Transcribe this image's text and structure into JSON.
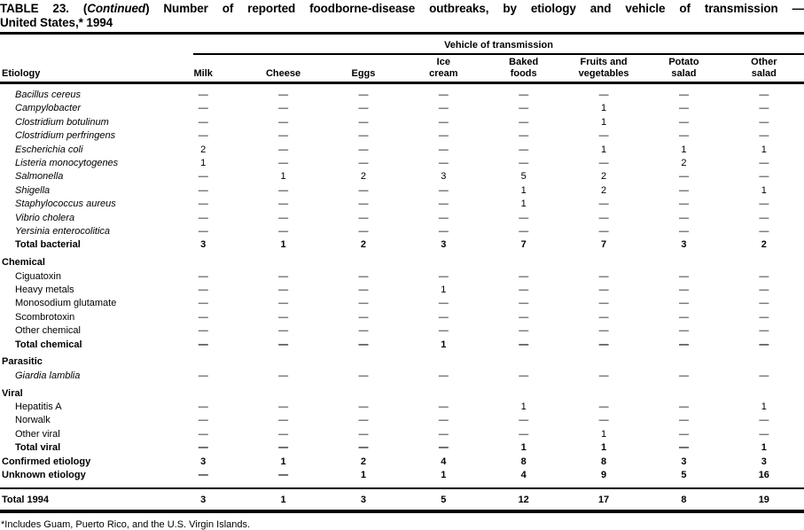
{
  "title": {
    "prefix": "TABLE 23. (",
    "continued": "Continued",
    "suffix": ") Number of reported foodborne-disease outbreaks, by etiology and vehicle of transmission —",
    "line2": "United States,* 1994"
  },
  "table": {
    "spanner_label": "Vehicle of transmission",
    "etiology_header": "Etiology",
    "columns": [
      {
        "lines": [
          "Milk"
        ]
      },
      {
        "lines": [
          "Cheese"
        ]
      },
      {
        "lines": [
          "Eggs"
        ]
      },
      {
        "lines": [
          "Ice",
          "cream"
        ]
      },
      {
        "lines": [
          "Baked",
          "foods"
        ]
      },
      {
        "lines": [
          "Fruits and",
          "vegetables"
        ]
      },
      {
        "lines": [
          "Potato",
          "salad"
        ]
      },
      {
        "lines": [
          "Other",
          "salad"
        ]
      }
    ],
    "rows": [
      {
        "label": "Bacillus cereus",
        "style": "species",
        "values": [
          "—",
          "—",
          "—",
          "—",
          "—",
          "—",
          "—",
          "—"
        ]
      },
      {
        "label": "Campylobacter",
        "style": "species",
        "values": [
          "—",
          "—",
          "—",
          "—",
          "—",
          "1",
          "—",
          "—"
        ]
      },
      {
        "label": "Clostridium botulinum",
        "style": "species",
        "values": [
          "—",
          "—",
          "—",
          "—",
          "—",
          "1",
          "—",
          "—"
        ]
      },
      {
        "label": "Clostridium perfringens",
        "style": "species",
        "values": [
          "—",
          "—",
          "—",
          "—",
          "—",
          "—",
          "—",
          "—"
        ]
      },
      {
        "label": "Escherichia coli",
        "style": "species",
        "values": [
          "2",
          "—",
          "—",
          "—",
          "—",
          "1",
          "1",
          "1"
        ]
      },
      {
        "label": "Listeria monocytogenes",
        "style": "species",
        "values": [
          "1",
          "—",
          "—",
          "—",
          "—",
          "—",
          "2",
          "—"
        ]
      },
      {
        "label": "Salmonella",
        "style": "species",
        "values": [
          "—",
          "1",
          "2",
          "3",
          "5",
          "2",
          "—",
          "—"
        ]
      },
      {
        "label": "Shigella",
        "style": "species",
        "values": [
          "—",
          "—",
          "—",
          "—",
          "1",
          "2",
          "—",
          "1"
        ]
      },
      {
        "label": "Staphylococcus aureus",
        "style": "species",
        "values": [
          "—",
          "—",
          "—",
          "—",
          "1",
          "—",
          "—",
          "—"
        ]
      },
      {
        "label": "Vibrio cholera",
        "style": "species",
        "values": [
          "—",
          "—",
          "—",
          "—",
          "—",
          "—",
          "—",
          "—"
        ]
      },
      {
        "label": "Yersinia enterocolitica",
        "style": "species",
        "values": [
          "—",
          "—",
          "—",
          "—",
          "—",
          "—",
          "—",
          "—"
        ]
      },
      {
        "label": "Total bacterial",
        "style": "total-sub",
        "values": [
          "3",
          "1",
          "2",
          "3",
          "7",
          "7",
          "3",
          "2"
        ]
      },
      {
        "label": "Chemical",
        "style": "section",
        "values": [
          "",
          "",
          "",
          "",
          "",
          "",
          "",
          ""
        ]
      },
      {
        "label": "Ciguatoxin",
        "style": "item",
        "values": [
          "—",
          "—",
          "—",
          "—",
          "—",
          "—",
          "—",
          "—"
        ]
      },
      {
        "label": "Heavy metals",
        "style": "item",
        "values": [
          "—",
          "—",
          "—",
          "1",
          "—",
          "—",
          "—",
          "—"
        ]
      },
      {
        "label": "Monosodium glutamate",
        "style": "item",
        "values": [
          "—",
          "—",
          "—",
          "—",
          "—",
          "—",
          "—",
          "—"
        ]
      },
      {
        "label": "Scombrotoxin",
        "style": "item",
        "values": [
          "—",
          "—",
          "—",
          "—",
          "—",
          "—",
          "—",
          "—"
        ]
      },
      {
        "label": "Other chemical",
        "style": "item",
        "values": [
          "—",
          "—",
          "—",
          "—",
          "—",
          "—",
          "—",
          "—"
        ]
      },
      {
        "label": "Total chemical",
        "style": "total-sub",
        "values": [
          "—",
          "—",
          "—",
          "1",
          "—",
          "—",
          "—",
          "—"
        ]
      },
      {
        "label": "Parasitic",
        "style": "section",
        "values": [
          "",
          "",
          "",
          "",
          "",
          "",
          "",
          ""
        ]
      },
      {
        "label": "Giardia lamblia",
        "style": "species",
        "values": [
          "—",
          "—",
          "—",
          "—",
          "—",
          "—",
          "—",
          "—"
        ]
      },
      {
        "label": "Viral",
        "style": "section",
        "values": [
          "",
          "",
          "",
          "",
          "",
          "",
          "",
          ""
        ]
      },
      {
        "label": "Hepatitis A",
        "style": "item",
        "values": [
          "—",
          "—",
          "—",
          "—",
          "1",
          "—",
          "—",
          "1"
        ]
      },
      {
        "label": "Norwalk",
        "style": "item",
        "values": [
          "—",
          "—",
          "—",
          "—",
          "—",
          "—",
          "—",
          "—"
        ]
      },
      {
        "label": "Other viral",
        "style": "item",
        "values": [
          "—",
          "—",
          "—",
          "—",
          "—",
          "1",
          "—",
          "—"
        ]
      },
      {
        "label": "Total viral",
        "style": "total-sub",
        "values": [
          "—",
          "—",
          "—",
          "—",
          "1",
          "1",
          "—",
          "1"
        ]
      },
      {
        "label": "Confirmed etiology",
        "style": "total-main",
        "values": [
          "3",
          "1",
          "2",
          "4",
          "8",
          "8",
          "3",
          "3"
        ]
      },
      {
        "label": "Unknown etiology",
        "style": "total-main",
        "values": [
          "—",
          "—",
          "1",
          "1",
          "4",
          "9",
          "5",
          "16"
        ]
      },
      {
        "label": "Total 1994",
        "style": "grand-total",
        "values": [
          "3",
          "1",
          "3",
          "5",
          "12",
          "17",
          "8",
          "19"
        ]
      }
    ]
  },
  "footnote": "*Includes Guam, Puerto Rico, and the U.S. Virgin Islands.",
  "colors": {
    "ink": "#000000",
    "paper": "#ffffff"
  }
}
